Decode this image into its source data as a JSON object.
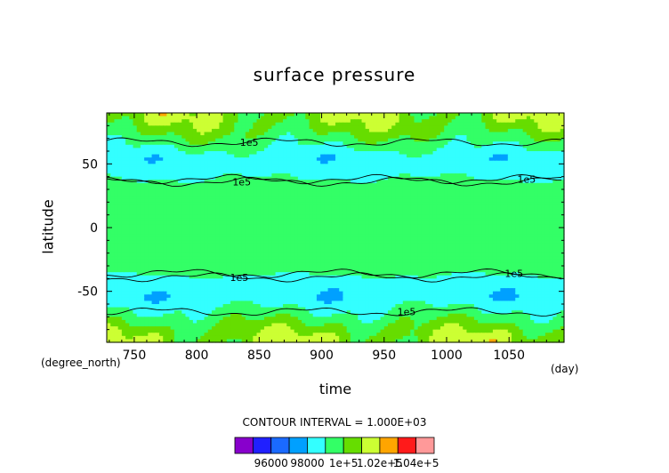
{
  "chart_data": {
    "type": "heatmap",
    "title": "surface pressure",
    "xlabel": "time",
    "ylabel": "latitude",
    "x_unit": "(day)",
    "y_unit": "(degree_north)",
    "xlim": [
      728,
      1094
    ],
    "ylim": [
      -90,
      90
    ],
    "x_ticks": [
      750,
      800,
      850,
      900,
      950,
      1000,
      1050
    ],
    "y_ticks": [
      50,
      0,
      -50
    ],
    "contour_interval_text": "CONTOUR INTERVAL = 1.000E+03",
    "contour_labels": [
      {
        "text": "1e5",
        "x": 842,
        "y": 67
      },
      {
        "text": "1e5",
        "x": 836,
        "y": 36
      },
      {
        "text": "1e5",
        "x": 1064,
        "y": 38
      },
      {
        "text": "1e5",
        "x": 834,
        "y": -39
      },
      {
        "text": "1e5",
        "x": 1054,
        "y": -36
      },
      {
        "text": "1e5",
        "x": 968,
        "y": -66
      }
    ],
    "latitude_profile_Pa": [
      {
        "lat": 85,
        "value": 101700
      },
      {
        "lat": 75,
        "value": 101100
      },
      {
        "lat": 65,
        "value": 100300
      },
      {
        "lat": 55,
        "value": 99400
      },
      {
        "lat": 45,
        "value": 99600
      },
      {
        "lat": 35,
        "value": 100200
      },
      {
        "lat": 25,
        "value": 100900
      },
      {
        "lat": 15,
        "value": 100600
      },
      {
        "lat": 0,
        "value": 100500
      },
      {
        "lat": -15,
        "value": 100600
      },
      {
        "lat": -25,
        "value": 100900
      },
      {
        "lat": -35,
        "value": 100200
      },
      {
        "lat": -45,
        "value": 99400
      },
      {
        "lat": -55,
        "value": 99300
      },
      {
        "lat": -65,
        "value": 100100
      },
      {
        "lat": -75,
        "value": 101000
      },
      {
        "lat": -85,
        "value": 101800
      }
    ],
    "colorbar": {
      "levels": [
        95000,
        96000,
        97000,
        98000,
        99000,
        100000,
        101000,
        102000,
        103000,
        104000,
        105000
      ],
      "colors": [
        "#8800cc",
        "#2020ff",
        "#1a6aff",
        "#00a0ff",
        "#33ffff",
        "#33ff66",
        "#66dd00",
        "#ccff33",
        "#ffa500",
        "#ff1a1a",
        "#ff9999"
      ],
      "tick_labels": [
        "96000",
        "98000",
        "1e+5",
        "1.02e+5",
        "1.04e+5"
      ]
    }
  },
  "labels": {
    "title": "surface pressure",
    "xlabel": "time",
    "ylabel": "latitude",
    "x_unit": "(day)",
    "y_unit": "(degree_north)",
    "interval": "CONTOUR INTERVAL = 1.000E+03"
  }
}
